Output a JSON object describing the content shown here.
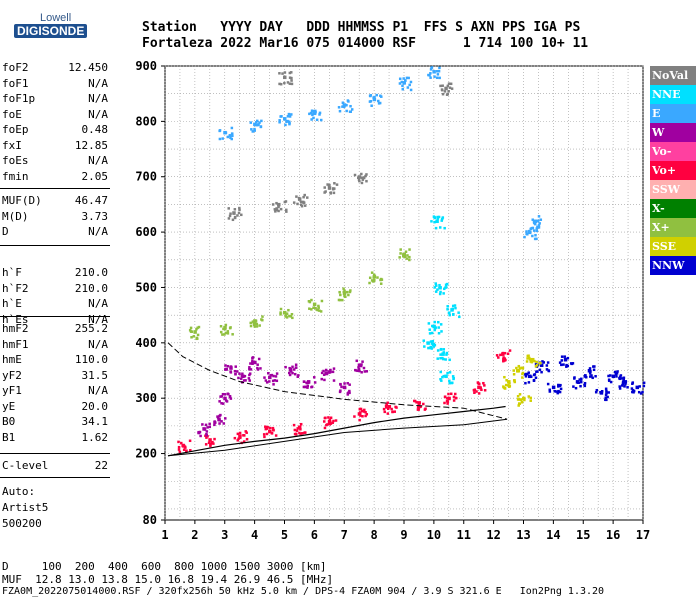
{
  "logo": {
    "top": "Lowell",
    "bottom": "DIGISONDE"
  },
  "header": {
    "line1": "Station   YYYY DAY   DDD HHMMSS P1  FFS S AXN PPS IGA PS",
    "line2": "Fortaleza 2022 Mar16 075 014000 RSF      1 714 100 10+ 11"
  },
  "params": {
    "group1": [
      {
        "name": "foF2",
        "value": "12.450"
      },
      {
        "name": "foF1",
        "value": "N/A"
      },
      {
        "name": "foF1p",
        "value": "N/A"
      },
      {
        "name": "foE",
        "value": "N/A"
      },
      {
        "name": "foEp",
        "value": "0.48"
      },
      {
        "name": "fxI",
        "value": "12.85"
      },
      {
        "name": "foEs",
        "value": "N/A"
      },
      {
        "name": "fmin",
        "value": "2.05"
      }
    ],
    "group2": [
      {
        "name": "MUF(D)",
        "value": "46.47"
      },
      {
        "name": "M(D)",
        "value": "3.73"
      },
      {
        "name": "D",
        "value": "N/A"
      }
    ],
    "group3": [
      {
        "name": "h`F",
        "value": "210.0"
      },
      {
        "name": "h`F2",
        "value": "210.0"
      },
      {
        "name": "h`E",
        "value": "N/A"
      },
      {
        "name": "h`Es",
        "value": "N/A"
      }
    ],
    "group4": [
      {
        "name": "hmF2",
        "value": "255.2"
      },
      {
        "name": "hmF1",
        "value": "N/A"
      },
      {
        "name": "hmE",
        "value": "110.0"
      },
      {
        "name": "yF2",
        "value": "31.5"
      },
      {
        "name": "yF1",
        "value": "N/A"
      },
      {
        "name": "yE",
        "value": "20.0"
      },
      {
        "name": "B0",
        "value": "34.1"
      },
      {
        "name": "B1",
        "value": "1.62"
      }
    ],
    "clevel": {
      "name": "C-level",
      "value": "22"
    },
    "auto": {
      "line1": "Auto:",
      "line2": "Artist5",
      "line3": "500200"
    }
  },
  "legend": [
    {
      "label": "NoVal",
      "bg": "#808080",
      "fg": "#ffffff"
    },
    {
      "label": "NNE",
      "bg": "#00e0ff",
      "fg": "#ffffff"
    },
    {
      "label": "E",
      "bg": "#3aa8ff",
      "fg": "#ffffff"
    },
    {
      "label": "W",
      "bg": "#a000a0",
      "fg": "#ffffff"
    },
    {
      "label": "Vo-",
      "bg": "#ff40a0",
      "fg": "#ffffff"
    },
    {
      "label": "Vo+",
      "bg": "#ff0040",
      "fg": "#ffffff"
    },
    {
      "label": "SSW",
      "bg": "#ffb0b0",
      "fg": "#ffffff"
    },
    {
      "label": "X-",
      "bg": "#008000",
      "fg": "#ffffff"
    },
    {
      "label": "X+",
      "bg": "#90c040",
      "fg": "#ffffff"
    },
    {
      "label": "SSE",
      "bg": "#d0d000",
      "fg": "#ffffff"
    },
    {
      "label": "NNW",
      "bg": "#0000d0",
      "fg": "#ffffff"
    }
  ],
  "footer": {
    "line1": "D     100  200  400  600  800 1000 1500 3000 [km]",
    "line2": "MUF  12.8 13.0 13.8 15.0 16.8 19.4 26.9 46.5 [MHz]",
    "line3": "FZA0M_2022075014000.RSF / 320fx256h 50 kHz 5.0 km / DPS-4 FZA0M 904 / 3.9 S 321.6 E   Ion2Png 1.3.20"
  },
  "chart_data": {
    "type": "scatter",
    "xlim": [
      1,
      17
    ],
    "ylim": [
      80,
      900
    ],
    "x_ticks": [
      1,
      2,
      3,
      4,
      5,
      6,
      7,
      8,
      9,
      10,
      11,
      12,
      13,
      14,
      15,
      16,
      17
    ],
    "y_ticks": [
      80,
      200,
      300,
      400,
      500,
      600,
      700,
      800,
      900
    ],
    "grid": true,
    "legend_position": "right",
    "profile_curve": [
      [
        1.1,
        196
      ],
      [
        2,
        205
      ],
      [
        3,
        215
      ],
      [
        4,
        222
      ],
      [
        5,
        228
      ],
      [
        6,
        236
      ],
      [
        7,
        246
      ],
      [
        8,
        256
      ],
      [
        9,
        264
      ],
      [
        10,
        270
      ],
      [
        11,
        276
      ],
      [
        12,
        282
      ],
      [
        12.4,
        285
      ]
    ],
    "profile_bounds_upper": [
      [
        1.1,
        400
      ],
      [
        1.6,
        375
      ],
      [
        2.5,
        350
      ],
      [
        3.5,
        330
      ],
      [
        5,
        312
      ],
      [
        7,
        298
      ],
      [
        9,
        288
      ],
      [
        11,
        282
      ],
      [
        12.45,
        262
      ]
    ],
    "profile_bounds_lower": [
      [
        1.1,
        196
      ],
      [
        3,
        206
      ],
      [
        5,
        222
      ],
      [
        7,
        238
      ],
      [
        9,
        246
      ],
      [
        11,
        252
      ],
      [
        12.45,
        262
      ]
    ],
    "echo_regions": [
      {
        "mode": "Vo+",
        "points": [
          [
            1.6,
            215
          ],
          [
            2.5,
            225
          ],
          [
            3.5,
            232
          ],
          [
            4.5,
            240
          ],
          [
            5.5,
            248
          ],
          [
            6.5,
            258
          ],
          [
            7.5,
            272
          ],
          [
            8.5,
            285
          ],
          [
            9.5,
            292
          ],
          [
            10.5,
            300
          ],
          [
            11.5,
            320
          ],
          [
            12.3,
            380
          ]
        ]
      },
      {
        "mode": "W",
        "points": [
          [
            2.3,
            245
          ],
          [
            2.8,
            262
          ],
          [
            3.2,
            355
          ],
          [
            3.6,
            340
          ],
          [
            4.0,
            365
          ],
          [
            4.5,
            338
          ],
          [
            5.2,
            352
          ],
          [
            5.8,
            330
          ],
          [
            6.4,
            345
          ],
          [
            7.0,
            320
          ],
          [
            7.5,
            360
          ],
          [
            3.0,
            300
          ]
        ]
      },
      {
        "mode": "NNE",
        "points": [
          [
            9.8,
            400
          ],
          [
            10.0,
            430
          ],
          [
            10.3,
            380
          ],
          [
            10.6,
            460
          ],
          [
            10.2,
            500
          ],
          [
            10.1,
            620
          ],
          [
            10.4,
            340
          ]
        ]
      },
      {
        "mode": "NNW",
        "points": [
          [
            13.2,
            340
          ],
          [
            13.6,
            360
          ],
          [
            14.0,
            320
          ],
          [
            14.4,
            370
          ],
          [
            14.8,
            330
          ],
          [
            15.2,
            350
          ],
          [
            15.6,
            310
          ],
          [
            16.0,
            340
          ],
          [
            16.4,
            330
          ],
          [
            16.8,
            320
          ]
        ]
      },
      {
        "mode": "X+",
        "points": [
          [
            6,
            470
          ],
          [
            7,
            490
          ],
          [
            8,
            520
          ],
          [
            9,
            560
          ],
          [
            4,
            440
          ],
          [
            5,
            455
          ],
          [
            2,
            420
          ],
          [
            3,
            428
          ]
        ]
      },
      {
        "mode": "E",
        "points": [
          [
            3,
            780
          ],
          [
            4,
            795
          ],
          [
            5,
            805
          ],
          [
            6,
            815
          ],
          [
            7,
            830
          ],
          [
            8,
            840
          ],
          [
            9,
            870
          ],
          [
            10,
            890
          ],
          [
            13.2,
            600
          ],
          [
            13.4,
            620
          ]
        ]
      },
      {
        "mode": "SSE",
        "points": [
          [
            12.5,
            330
          ],
          [
            12.8,
            350
          ],
          [
            13.0,
            300
          ],
          [
            13.3,
            370
          ]
        ]
      },
      {
        "mode": "NoVal",
        "points": [
          [
            4.8,
            650
          ],
          [
            5.5,
            660
          ],
          [
            6.5,
            680
          ],
          [
            7.5,
            700
          ],
          [
            3.3,
            635
          ],
          [
            5,
            880
          ],
          [
            10.4,
            860
          ]
        ]
      }
    ]
  }
}
